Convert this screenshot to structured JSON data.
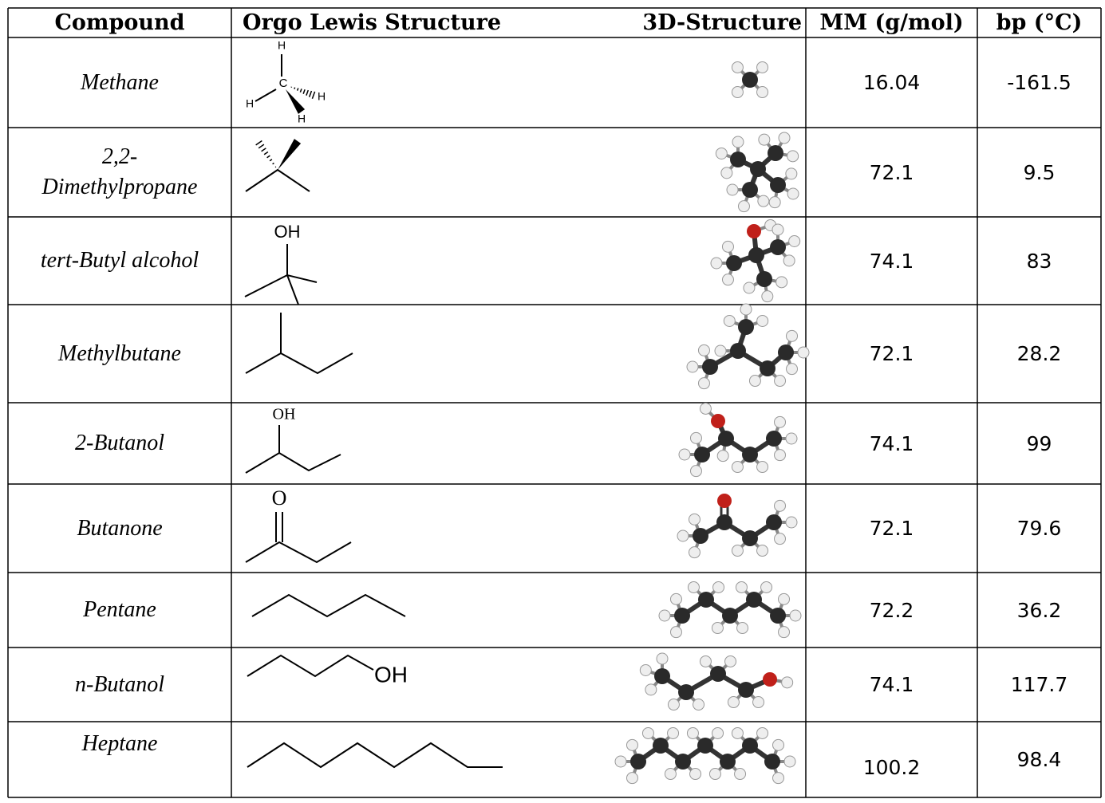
{
  "header": [
    "Compound",
    "Orgo Lewis Structure",
    "3D-Structure",
    "MM (g/mol)",
    "bp (°C)"
  ],
  "rows": [
    {
      "name_lines": [
        "Methane"
      ],
      "mm": "16.04",
      "bp": "-161.5",
      "structure_labels": [
        "H",
        "C",
        "H",
        "H",
        "H"
      ]
    },
    {
      "name_lines": [
        "2,2-",
        "Dimethylpropane"
      ],
      "mm": "72.1",
      "bp": "9.5",
      "structure_labels": []
    },
    {
      "name_lines": [
        "tert-Butyl alcohol"
      ],
      "mm": "74.1",
      "bp": "83",
      "structure_labels": [
        "OH"
      ]
    },
    {
      "name_lines": [
        "Methylbutane"
      ],
      "mm": "72.1",
      "bp": "28.2",
      "structure_labels": []
    },
    {
      "name_lines": [
        "2-Butanol"
      ],
      "mm": "74.1",
      "bp": "99",
      "structure_labels": [
        "OH"
      ]
    },
    {
      "name_lines": [
        "Butanone"
      ],
      "mm": "72.1",
      "bp": "79.6",
      "structure_labels": [
        "O"
      ]
    },
    {
      "name_lines": [
        "Pentane"
      ],
      "mm": "72.2",
      "bp": "36.2",
      "structure_labels": []
    },
    {
      "name_lines": [
        "n-Butanol"
      ],
      "mm": "74.1",
      "bp": "117.7",
      "structure_labels": [
        "OH"
      ]
    },
    {
      "name_lines": [
        "Heptane"
      ],
      "mm": "100.2",
      "bp": "98.4",
      "structure_labels": []
    }
  ]
}
